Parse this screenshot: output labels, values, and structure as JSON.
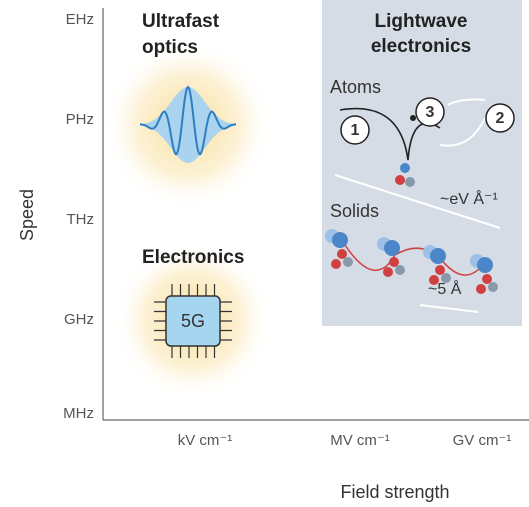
{
  "axes": {
    "y_label": "Speed",
    "x_label": "Field strength",
    "y_ticks": [
      "EHz",
      "PHz",
      "THz",
      "GHz",
      "MHz"
    ],
    "x_ticks": [
      "kV cm⁻¹",
      "MV cm⁻¹",
      "GV cm⁻¹"
    ]
  },
  "ultrafast": {
    "title": [
      "Ultrafast",
      "optics"
    ]
  },
  "electronics": {
    "title": "Electronics",
    "chip": "5G"
  },
  "lightwave": {
    "title": [
      "Lightwave",
      "electronics"
    ],
    "atoms": "Atoms",
    "solids": "Solids",
    "steps": [
      "1",
      "3",
      "2"
    ],
    "field": "~eV Å⁻¹",
    "spacing": "~5 Å"
  }
}
